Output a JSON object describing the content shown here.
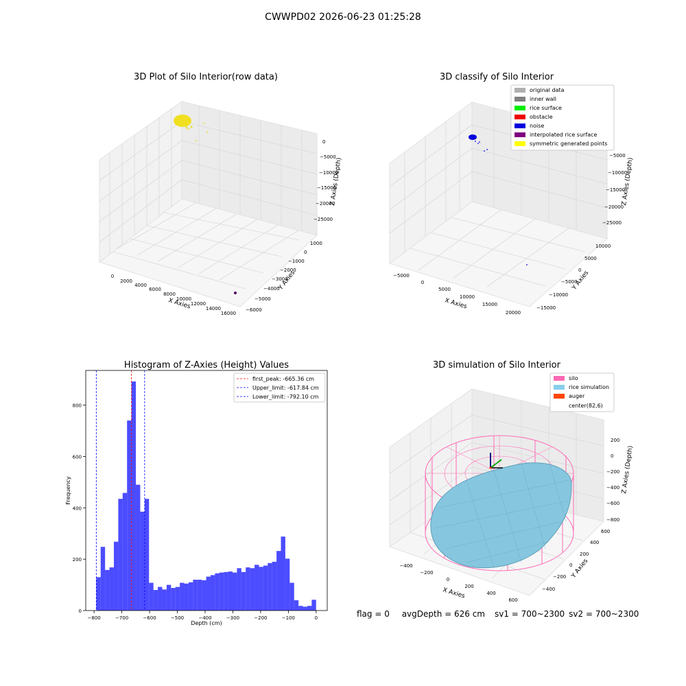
{
  "suptitle": "CWWPD02 2026-06-23 01:25:28",
  "panels": {
    "raw": {
      "title": "3D Plot of Silo Interior(row data)",
      "xlabel": "X Axies",
      "ylabel": "Y Axies",
      "zlabel": "Z Axies (Depth)",
      "xticks": [
        "0",
        "2000",
        "4000",
        "6000",
        "8000",
        "10000",
        "12000",
        "14000",
        "16000"
      ],
      "yticks": [
        "1000",
        "0",
        "−1000",
        "−2000",
        "−3000",
        "−4000",
        "−5000",
        "−6000"
      ],
      "zticks": [
        "0",
        "−5000",
        "−10000",
        "−15000",
        "−20000",
        "−25000"
      ]
    },
    "classify": {
      "title": "3D classify of Silo Interior",
      "xlabel": "X Axies",
      "ylabel": "Y Axies",
      "zlabel": "Z Axies (Depth)",
      "xticks": [
        "−5000",
        "0",
        "5000",
        "10000",
        "15000",
        "20000"
      ],
      "yticks": [
        "10000",
        "5000",
        "0",
        "−5000",
        "−10000",
        "−15000"
      ],
      "zticks": [
        "0",
        "−5000",
        "−10000",
        "−15000",
        "−20000",
        "−25000"
      ],
      "legend": [
        {
          "label": "original data",
          "color": "#b0b0b0"
        },
        {
          "label": "inner wall",
          "color": "#808080"
        },
        {
          "label": "rice surface",
          "color": "#00ee00"
        },
        {
          "label": "obstacle",
          "color": "#ee0000"
        },
        {
          "label": "noise",
          "color": "#0000dd"
        },
        {
          "label": "interpolated rice surface",
          "color": "#800080"
        },
        {
          "label": "symmetric generated points",
          "color": "#ffff00"
        }
      ]
    },
    "simulation": {
      "title": "3D simulation of Silo Interior",
      "xlabel": "X Axies",
      "ylabel": "Y Axies",
      "zlabel": "Z Axies (Depth)",
      "xticks": [
        "−400",
        "−200",
        "0",
        "200",
        "400",
        "600"
      ],
      "yticks": [
        "600",
        "400",
        "200",
        "0",
        "−200",
        "−400"
      ],
      "zticks": [
        "200",
        "0",
        "−200",
        "−400",
        "−600",
        "−800"
      ],
      "legend": [
        {
          "label": "silo",
          "color": "#ff69b4"
        },
        {
          "label": "rice simulation",
          "color": "#87ceeb"
        },
        {
          "label": "auger",
          "color": "#ff4500"
        },
        {
          "label": "center(82,6)",
          "color": "#ffffff"
        }
      ]
    }
  },
  "footer": {
    "flag": "flag = 0",
    "avg": "avgDepth = 626 cm",
    "sv1": "sv1 = 700~2300",
    "sv2": "sv2 = 700~2300"
  },
  "chart_data": [
    {
      "type": "scatter",
      "title": "3D Plot of Silo Interior(row data)",
      "xlabel": "X Axies",
      "ylabel": "Y Axies",
      "zlabel": "Z Axies (Depth)",
      "xlim": [
        -1000,
        17000
      ],
      "ylim": [
        -6500,
        1200
      ],
      "zlim": [
        -27000,
        1000
      ]
    },
    {
      "type": "scatter",
      "title": "3D classify of Silo Interior",
      "xlabel": "X Axies",
      "ylabel": "Y Axies",
      "zlabel": "Z Axies (Depth)",
      "xlim": [
        -6000,
        21000
      ],
      "ylim": [
        -16000,
        11000
      ],
      "zlim": [
        -27000,
        1000
      ],
      "legend_position": "top-right"
    },
    {
      "type": "bar",
      "title": "Histogram of Z-Axies (Height) Values",
      "xlabel": "Depth (cm)",
      "ylabel": "Frequency",
      "xlim": [
        -830,
        40
      ],
      "ylim": [
        0,
        935
      ],
      "xticks": [
        -800,
        -700,
        -600,
        -500,
        -400,
        -300,
        -200,
        -100,
        0
      ],
      "yticks": [
        0,
        200,
        400,
        600,
        800
      ],
      "bin_start": -792.1,
      "bin_width": 15.84,
      "values": [
        130,
        248,
        158,
        168,
        268,
        435,
        458,
        740,
        892,
        490,
        385,
        435,
        108,
        80,
        92,
        82,
        100,
        88,
        92,
        108,
        105,
        110,
        120,
        120,
        118,
        132,
        138,
        145,
        148,
        150,
        152,
        148,
        165,
        150,
        168,
        165,
        178,
        170,
        175,
        185,
        190,
        232,
        288,
        202,
        108,
        40,
        18,
        15,
        18,
        42
      ],
      "color": "#0000ff",
      "lines": [
        {
          "label": "first_peak: -665.36 cm",
          "x": -665.36,
          "color": "#ff0000"
        },
        {
          "label": "Upper_limit: -617.84 cm",
          "x": -617.84,
          "color": "#0000ff"
        },
        {
          "label": "Lower_limit: -792.10 cm",
          "x": -792.1,
          "color": "#0000ff"
        }
      ],
      "legend_position": "top-right"
    },
    {
      "type": "surface",
      "title": "3D simulation of Silo Interior",
      "xlabel": "X Axies",
      "ylabel": "Y Axies",
      "zlabel": "Z Axies (Depth)",
      "xlim": [
        -500,
        700
      ],
      "ylim": [
        -500,
        700
      ],
      "zlim": [
        -850,
        350
      ],
      "legend_position": "top-right"
    }
  ]
}
